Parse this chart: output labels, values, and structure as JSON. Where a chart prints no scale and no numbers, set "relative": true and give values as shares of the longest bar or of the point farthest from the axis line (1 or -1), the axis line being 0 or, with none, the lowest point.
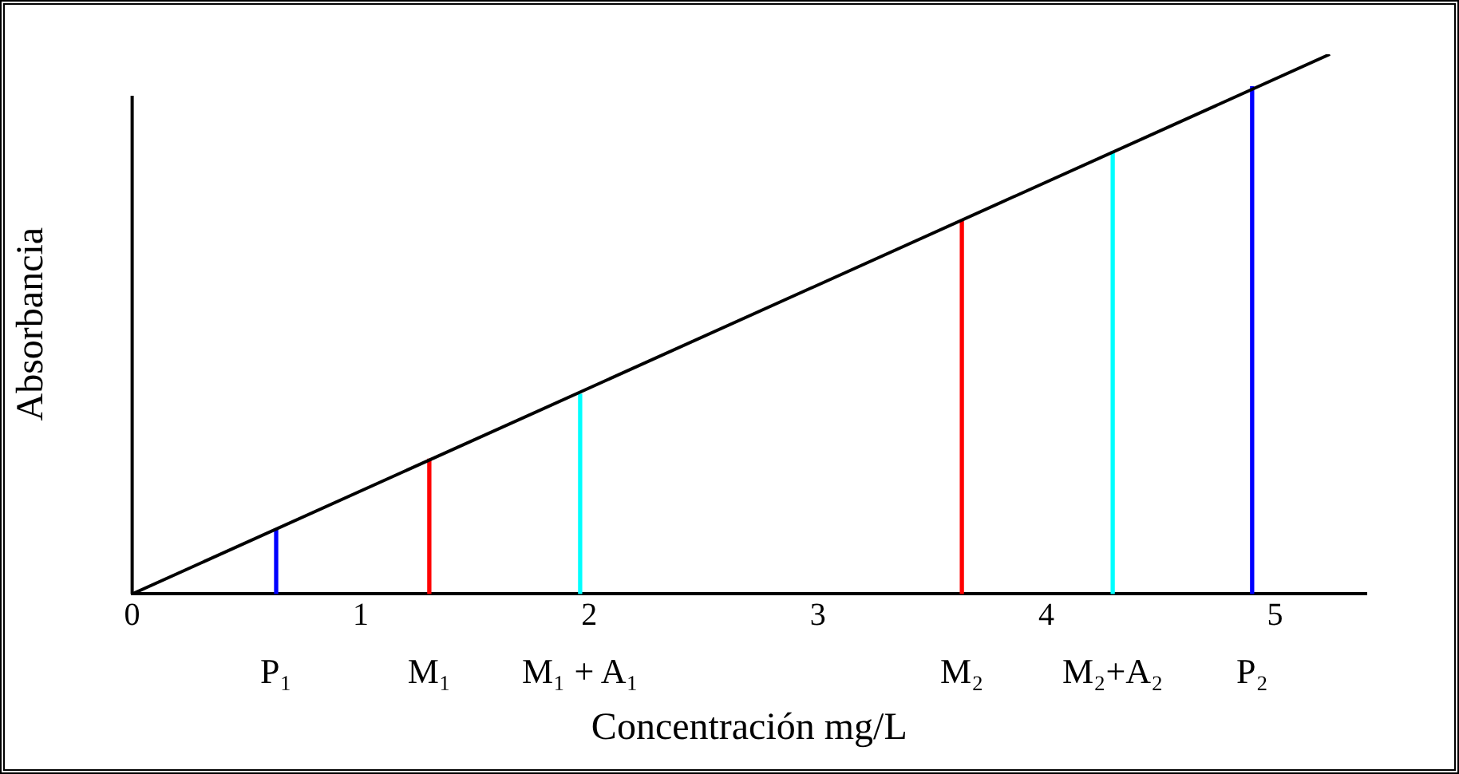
{
  "chart_data": {
    "type": "bar",
    "relative": true,
    "xlabel": "Concentración mg/L",
    "ylabel": "Absorbancia",
    "xlim": [
      0,
      5.4
    ],
    "xticks": [
      0,
      1,
      2,
      3,
      4,
      5
    ],
    "legend": false,
    "marker": "none",
    "series": [
      {
        "type": "line",
        "color": "#000000",
        "x": [
          0,
          5.24
        ],
        "values": [
          0,
          1
        ]
      },
      {
        "x": [
          0.63,
          1.3,
          1.96,
          3.63,
          4.29,
          4.9
        ],
        "values": [
          0.12,
          0.25,
          0.37,
          0.69,
          0.82,
          0.94
        ],
        "colors": [
          "#0000ff",
          "#ff0000",
          "#00ffff",
          "#ff0000",
          "#00ffff",
          "#0000ff"
        ]
      }
    ],
    "annotations": [
      {
        "text": "P₁",
        "x": 0.63,
        "y": 0
      },
      {
        "text": "M₁",
        "x": 1.3,
        "y": 0
      },
      {
        "text": "M₁ + A₁",
        "x": 1.96,
        "y": 0
      },
      {
        "text": "M₂",
        "x": 3.63,
        "y": 0
      },
      {
        "text": "M₂+A₂",
        "x": 4.29,
        "y": 0
      },
      {
        "text": "P₂",
        "x": 4.9,
        "y": 0
      }
    ]
  }
}
